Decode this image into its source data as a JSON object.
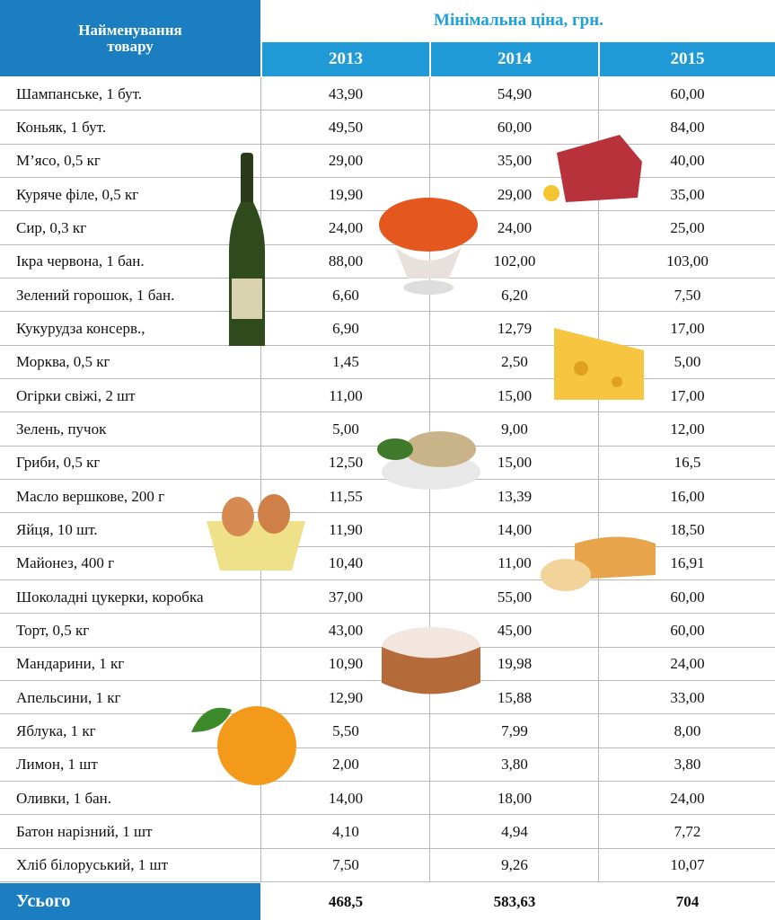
{
  "header": {
    "title": "Найменування товару",
    "price_title": "Мінімальна ціна, грн.",
    "years": [
      "2013",
      "2014",
      "2015"
    ]
  },
  "rows": [
    [
      "Шампанське, 1 бут.",
      "43,90",
      "54,90",
      "60,00"
    ],
    [
      "Коньяк, 1 бут.",
      "49,50",
      "60,00",
      "84,00"
    ],
    [
      "М’ясо, 0,5 кг",
      "29,00",
      "35,00",
      "40,00"
    ],
    [
      "Куряче філе, 0,5 кг",
      "19,90",
      "29,00",
      "35,00"
    ],
    [
      "Сир, 0,3 кг",
      "24,00",
      "24,00",
      "25,00"
    ],
    [
      "Ікра червона, 1 бан.",
      "88,00",
      "102,00",
      "103,00"
    ],
    [
      "Зелений горошок, 1 бан.",
      "6,60",
      "6,20",
      "7,50"
    ],
    [
      "Кукурудза консерв.,",
      "6,90",
      "12,79",
      "17,00"
    ],
    [
      "Морква, 0,5 кг",
      "1,45",
      "2,50",
      "5,00"
    ],
    [
      "Огірки свіжі, 2 шт",
      "11,00",
      "15,00",
      "17,00"
    ],
    [
      "Зелень, пучок",
      "5,00",
      "9,00",
      "12,00"
    ],
    [
      "Гриби, 0,5 кг",
      "12,50",
      "15,00",
      "16,5"
    ],
    [
      "Масло вершкове, 200 г",
      "11,55",
      "13,39",
      "16,00"
    ],
    [
      "Яйця, 10 шт.",
      "11,90",
      "14,00",
      "18,50"
    ],
    [
      "Майонез, 400 г",
      "10,40",
      "11,00",
      "16,91"
    ],
    [
      "Шоколадні цукерки, коробка",
      "37,00",
      "55,00",
      "60,00"
    ],
    [
      "Торт, 0,5 кг",
      "43,00",
      "45,00",
      "60,00"
    ],
    [
      "Мандарини, 1 кг",
      "10,90",
      "19,98",
      "24,00"
    ],
    [
      "Апельсини, 1 кг",
      "12,90",
      "15,88",
      "33,00"
    ],
    [
      "Яблука, 1 кг",
      "5,50",
      "7,99",
      "8,00"
    ],
    [
      "Лимон, 1 шт",
      "2,00",
      "3,80",
      "3,80"
    ],
    [
      "Оливки, 1 бан.",
      "14,00",
      "18,00",
      "24,00"
    ],
    [
      "Батон нарізний, 1 шт",
      "4,10",
      "4,94",
      "7,72"
    ],
    [
      "Хліб білоруський, 1 шт",
      "7,50",
      "9,26",
      "10,07"
    ]
  ],
  "total": [
    "Усього",
    "468,5",
    "583,63",
    "704"
  ]
}
